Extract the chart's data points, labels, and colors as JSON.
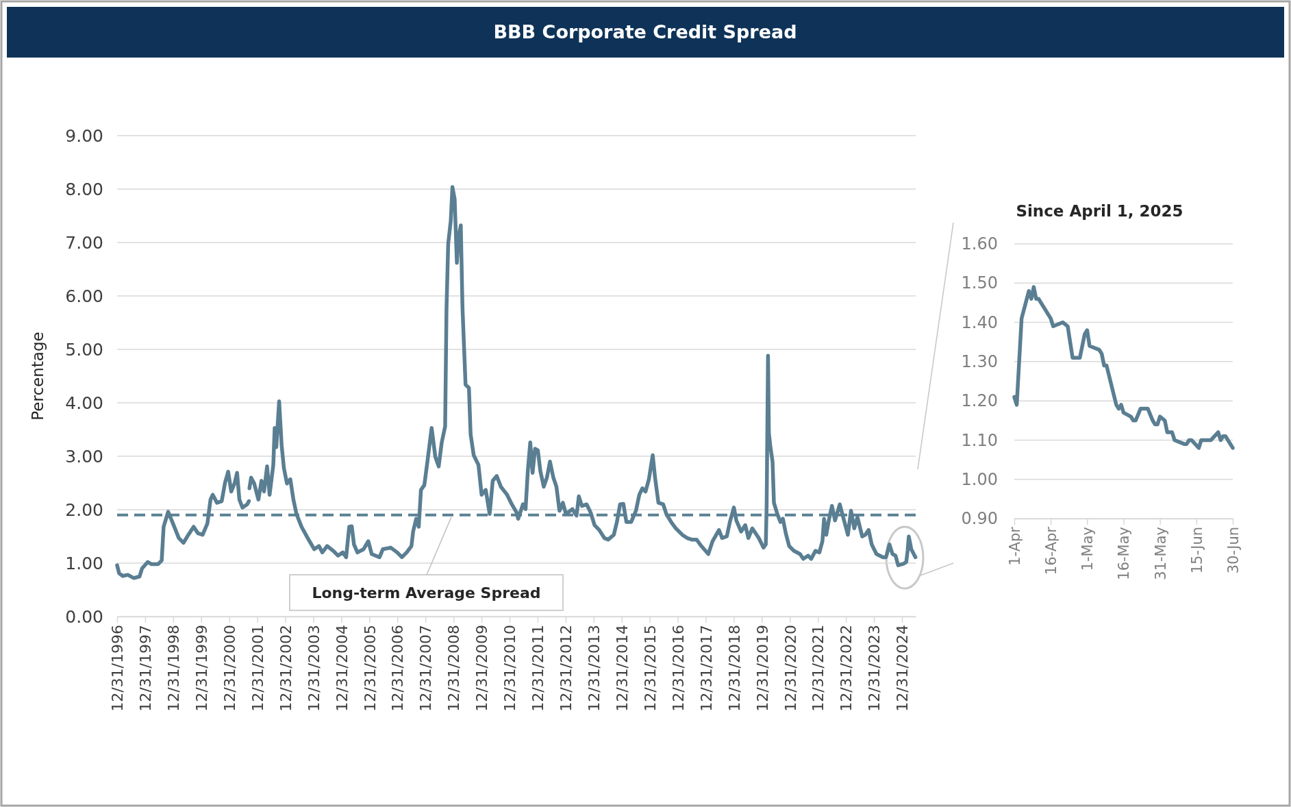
{
  "chart_data": [
    {
      "type": "line",
      "title": "BBB Corporate Credit Spread",
      "ylabel": "Percentage",
      "xlim": [
        "1996-12-31",
        "2025-06-27"
      ],
      "xticks": [
        {
          "value": "1996-12-31",
          "label": "12/31/1996"
        },
        {
          "value": "1997-12-31",
          "label": "12/31/1997"
        },
        {
          "value": "1998-12-31",
          "label": "12/31/1998"
        },
        {
          "value": "1999-12-31",
          "label": "12/31/1999"
        },
        {
          "value": "2000-12-31",
          "label": "12/31/2000"
        },
        {
          "value": "2001-12-31",
          "label": "12/31/2001"
        },
        {
          "value": "2002-12-31",
          "label": "12/31/2002"
        },
        {
          "value": "2003-12-31",
          "label": "12/31/2003"
        },
        {
          "value": "2004-12-31",
          "label": "12/31/2004"
        },
        {
          "value": "2005-12-31",
          "label": "12/31/2005"
        },
        {
          "value": "2006-12-31",
          "label": "12/31/2006"
        },
        {
          "value": "2007-12-31",
          "label": "12/31/2007"
        },
        {
          "value": "2008-12-31",
          "label": "12/31/2008"
        },
        {
          "value": "2009-12-31",
          "label": "12/31/2009"
        },
        {
          "value": "2010-12-31",
          "label": "12/31/2010"
        },
        {
          "value": "2011-12-31",
          "label": "12/31/2011"
        },
        {
          "value": "2012-12-31",
          "label": "12/31/2012"
        },
        {
          "value": "2013-12-31",
          "label": "12/31/2013"
        },
        {
          "value": "2014-12-31",
          "label": "12/31/2014"
        },
        {
          "value": "2015-12-31",
          "label": "12/31/2015"
        },
        {
          "value": "2016-12-31",
          "label": "12/31/2016"
        },
        {
          "value": "2017-12-31",
          "label": "12/31/2017"
        },
        {
          "value": "2018-12-31",
          "label": "12/31/2018"
        },
        {
          "value": "2019-12-31",
          "label": "12/31/2019"
        },
        {
          "value": "2020-12-31",
          "label": "12/31/2020"
        },
        {
          "value": "2021-12-31",
          "label": "12/31/2021"
        },
        {
          "value": "2022-12-31",
          "label": "12/31/2022"
        },
        {
          "value": "2023-12-31",
          "label": "12/31/2023"
        },
        {
          "value": "2024-12-31",
          "label": "12/31/2024"
        }
      ],
      "ylim": [
        0,
        9
      ],
      "yticks": [
        {
          "value": 0,
          "label": "0.00"
        },
        {
          "value": 1,
          "label": "1.00"
        },
        {
          "value": 2,
          "label": "2.00"
        },
        {
          "value": 3,
          "label": "3.00"
        },
        {
          "value": 4,
          "label": "4.00"
        },
        {
          "value": 5,
          "label": "5.00"
        },
        {
          "value": 6,
          "label": "6.00"
        },
        {
          "value": 7,
          "label": "7.00"
        },
        {
          "value": 8,
          "label": "8.00"
        },
        {
          "value": 9,
          "label": "9.00"
        }
      ],
      "grid": "y",
      "ref_lines": [
        {
          "axis": "y",
          "value": 1.9,
          "label": "Long-term Average Spread",
          "color": "#5b8194",
          "line_style": "dashed"
        }
      ],
      "series": [
        {
          "color": "#5a7e92",
          "x": [
            "1996-12-31",
            "1997-01-26",
            "1997-03-14",
            "1997-05-19",
            "1997-08-07",
            "1997-10-19",
            "1997-11-21",
            "1998-02-02",
            "1998-03-25",
            "1998-06-17",
            "1998-08-04",
            "1998-08-29",
            "1998-10-27",
            "1998-12-21",
            "1999-03-14",
            "1999-05-15",
            "1999-07-17",
            "1999-09-24",
            "1999-11-18",
            "2000-01-19",
            "2000-03-21",
            "2000-05-01",
            "2000-05-30",
            "2000-07-24",
            "2000-09-24",
            "2000-11-07",
            "2000-12-17",
            "2001-01-26",
            "2001-03-10",
            "2001-04-12",
            "2001-05-12",
            "2001-06-21",
            "2001-08-22",
            "2001-09-13",
            "2001-09-16",
            "2001-09-20",
            "2001-10-12",
            "2001-11-21",
            "2002-01-15",
            "2002-02-24",
            "2002-03-29",
            "2002-05-08",
            "2002-06-10",
            "2002-07-28",
            "2002-08-15",
            "2002-09-05",
            "2002-10-12",
            "2002-11-14",
            "2002-12-13",
            "2003-01-22",
            "2003-03-07",
            "2003-04-16",
            "2003-05-26",
            "2003-07-31",
            "2003-10-19",
            "2004-01-12",
            "2004-03-14",
            "2004-04-27",
            "2004-06-28",
            "2004-09-16",
            "2004-11-18",
            "2005-01-19",
            "2005-03-03",
            "2005-04-12",
            "2005-05-15",
            "2005-06-13",
            "2005-07-28",
            "2005-10-16",
            "2005-12-17",
            "2006-01-30",
            "2006-05-12",
            "2006-06-24",
            "2006-10-05",
            "2006-12-28",
            "2007-02-28",
            "2007-05-01",
            "2007-07-02",
            "2007-07-24",
            "2007-09-02",
            "2007-10-05",
            "2007-11-03",
            "2007-12-17",
            "2008-01-26",
            "2008-03-21",
            "2008-05-08",
            "2008-06-21",
            "2008-07-31",
            "2008-09-13",
            "2008-10-01",
            "2008-10-23",
            "2008-11-25",
            "2008-12-17",
            "2009-01-15",
            "2009-02-13",
            "2009-03-07",
            "2009-04-05",
            "2009-04-27",
            "2009-06-06",
            "2009-07-20",
            "2009-08-11",
            "2009-09-20",
            "2009-11-21",
            "2010-01-01",
            "2010-02-24",
            "2010-04-16",
            "2010-05-26",
            "2010-07-17",
            "2010-09-09",
            "2010-11-29",
            "2011-01-30",
            "2011-04-01",
            "2011-04-23",
            "2011-06-24",
            "2011-07-28",
            "2011-08-26",
            "2011-09-27",
            "2011-10-27",
            "2011-11-29",
            "2012-01-04",
            "2012-02-06",
            "2012-03-21",
            "2012-05-01",
            "2012-06-10",
            "2012-07-24",
            "2012-09-02",
            "2012-10-12",
            "2012-11-25",
            "2013-01-04",
            "2013-03-29",
            "2013-05-22",
            "2013-06-21",
            "2013-07-31",
            "2013-10-01",
            "2013-11-21",
            "2014-01-12",
            "2014-03-14",
            "2014-05-19",
            "2014-07-09",
            "2014-09-20",
            "2014-10-30",
            "2014-12-10",
            "2015-01-22",
            "2015-03-03",
            "2015-05-04",
            "2015-07-05",
            "2015-08-18",
            "2015-09-27",
            "2015-11-07",
            "2015-12-21",
            "2016-02-09",
            "2016-03-10",
            "2016-04-23",
            "2016-06-24",
            "2016-08-04",
            "2016-10-05",
            "2016-12-06",
            "2017-02-28",
            "2017-05-01",
            "2017-07-02",
            "2017-09-02",
            "2017-11-03",
            "2018-02-02",
            "2018-03-29",
            "2018-06-21",
            "2018-07-31",
            "2018-10-01",
            "2018-11-10",
            "2019-01-01",
            "2019-02-02",
            "2019-04-05",
            "2019-05-30",
            "2019-07-09",
            "2019-08-29",
            "2019-11-21",
            "2020-01-22",
            "2020-02-21",
            "2020-03-03",
            "2020-03-21",
            "2020-04-01",
            "2020-04-19",
            "2020-05-19",
            "2020-06-06",
            "2020-07-20",
            "2020-08-29",
            "2020-10-01",
            "2020-11-07",
            "2020-12-21",
            "2021-02-21",
            "2021-05-12",
            "2021-06-24",
            "2021-08-26",
            "2021-10-05",
            "2021-11-29",
            "2022-01-19",
            "2022-02-28",
            "2022-03-21",
            "2022-04-19",
            "2022-05-22",
            "2022-07-02",
            "2022-08-11",
            "2022-10-12",
            "2022-11-25",
            "2023-01-26",
            "2023-03-07",
            "2023-04-19",
            "2023-05-30",
            "2023-07-31",
            "2023-09-09",
            "2023-10-23",
            "2023-12-02",
            "2024-02-02",
            "2024-04-27",
            "2024-06-06",
            "2024-07-20",
            "2024-08-29",
            "2024-10-08",
            "2024-11-10",
            "2025-01-22",
            "2025-02-24",
            "2025-03-14",
            "2025-03-29",
            "2025-05-01",
            "2025-06-24"
          ],
          "values": [
            0.96,
            0.81,
            0.76,
            0.78,
            0.72,
            0.75,
            0.9,
            1.02,
            0.98,
            0.98,
            1.05,
            1.68,
            1.96,
            1.77,
            1.47,
            1.38,
            1.53,
            1.68,
            1.56,
            1.53,
            1.74,
            2.19,
            2.28,
            2.13,
            2.16,
            2.51,
            2.71,
            2.34,
            2.49,
            2.69,
            2.19,
            2.04,
            2.1,
            2.16,
            null,
            2.4,
            2.6,
            2.49,
            2.19,
            2.54,
            2.34,
            2.81,
            2.28,
            2.84,
            3.53,
            3.17,
            4.03,
            3.2,
            2.78,
            2.49,
            2.57,
            2.19,
            1.92,
            1.68,
            1.47,
            1.26,
            1.32,
            1.2,
            1.32,
            1.23,
            1.14,
            1.2,
            1.11,
            1.68,
            1.69,
            1.35,
            1.2,
            1.26,
            1.41,
            1.17,
            1.11,
            1.26,
            1.29,
            1.2,
            1.11,
            1.2,
            1.32,
            1.59,
            1.83,
            1.68,
            2.37,
            2.46,
            2.9,
            3.53,
            2.99,
            2.81,
            3.26,
            3.56,
            5.78,
            6.98,
            7.4,
            8.04,
            7.81,
            6.62,
            7.1,
            7.32,
            5.78,
            4.34,
            4.28,
            3.41,
            3.02,
            2.84,
            2.28,
            2.37,
            1.92,
            2.54,
            2.63,
            2.43,
            2.28,
            2.1,
            1.95,
            1.83,
            2.1,
            2.01,
            2.72,
            3.26,
            2.69,
            3.14,
            3.11,
            2.72,
            2.43,
            2.6,
            2.9,
            2.6,
            2.43,
            1.98,
            2.13,
            1.92,
            2.01,
            1.89,
            2.25,
            2.07,
            2.1,
            1.95,
            1.71,
            1.62,
            1.47,
            1.44,
            1.53,
            1.77,
            2.1,
            2.11,
            1.77,
            1.77,
            1.98,
            2.28,
            2.4,
            2.34,
            2.57,
            3.02,
            2.6,
            2.13,
            2.1,
            1.92,
            1.77,
            1.65,
            1.53,
            1.47,
            1.44,
            1.44,
            1.32,
            1.17,
            1.41,
            1.62,
            1.47,
            1.5,
            1.77,
            2.04,
            1.8,
            1.59,
            1.71,
            1.47,
            1.65,
            1.47,
            1.29,
            1.35,
            2.07,
            4.88,
            3.44,
            3.2,
            2.9,
            2.13,
            1.92,
            1.77,
            1.83,
            1.56,
            1.32,
            1.23,
            1.17,
            1.08,
            1.14,
            1.08,
            1.23,
            1.2,
            1.41,
            1.83,
            1.53,
            1.8,
            2.07,
            1.8,
            2.1,
            1.86,
            1.53,
            1.98,
            1.65,
            1.86,
            1.5,
            1.53,
            1.62,
            1.35,
            1.17,
            1.11,
            1.11,
            1.35,
            1.17,
            1.14,
            0.96,
            0.99,
            1.02,
            1.23,
            1.5,
            1.26,
            1.11
          ]
        }
      ]
    },
    {
      "type": "line",
      "title": "Since April 1, 2025",
      "xlim": [
        "--04-01",
        "--06-30"
      ],
      "xticks": [
        {
          "value": "--04-01",
          "label": "1-Apr"
        },
        {
          "value": "--04-16",
          "label": "16-Apr"
        },
        {
          "value": "--05-01",
          "label": "1-May"
        },
        {
          "value": "--05-16",
          "label": "16-May"
        },
        {
          "value": "--05-31",
          "label": "31-May"
        },
        {
          "value": "--06-15",
          "label": "15-Jun"
        },
        {
          "value": "--06-30",
          "label": "30-Jun"
        }
      ],
      "ylim": [
        0.9,
        1.6
      ],
      "yticks": [
        {
          "value": 0.9,
          "label": "0.90"
        },
        {
          "value": 1.0,
          "label": "1.00"
        },
        {
          "value": 1.1,
          "label": "1.10"
        },
        {
          "value": 1.2,
          "label": "1.20"
        },
        {
          "value": 1.3,
          "label": "1.30"
        },
        {
          "value": 1.4,
          "label": "1.40"
        },
        {
          "value": 1.5,
          "label": "1.50"
        },
        {
          "value": 1.6,
          "label": "1.60"
        }
      ],
      "grid": "y",
      "series": [
        {
          "color": "#5a7e92",
          "x": [
            "--04-01",
            "--04-02",
            "--04-04",
            "--04-07",
            "--04-08",
            "--04-09",
            "--04-10",
            "--04-11",
            "--04-16",
            "--04-17",
            "--04-21",
            "--04-23",
            "--04-24",
            "--04-25",
            "--04-28",
            "--04-30",
            "--05-01",
            "--05-02",
            "--05-06",
            "--05-07",
            "--05-08",
            "--05-09",
            "--05-13",
            "--05-14",
            "--05-15",
            "--05-16",
            "--05-19",
            "--05-20",
            "--05-21",
            "--05-23",
            "--05-26",
            "--05-28",
            "--05-29",
            "--05-30",
            "--05-31",
            "--06-02",
            "--06-03",
            "--06-05",
            "--06-06",
            "--06-10",
            "--06-11",
            "--06-12",
            "--06-13",
            "--06-16",
            "--06-17",
            "--06-21",
            "--06-24",
            "--06-25",
            "--06-26",
            "--06-27",
            "--06-30"
          ],
          "values": [
            1.21,
            1.19,
            1.41,
            1.48,
            1.46,
            1.49,
            1.46,
            1.46,
            1.41,
            1.39,
            1.4,
            1.39,
            1.35,
            1.31,
            1.31,
            1.37,
            1.38,
            1.34,
            1.33,
            1.32,
            1.29,
            1.29,
            1.19,
            1.18,
            1.19,
            1.17,
            1.16,
            1.15,
            1.15,
            1.18,
            1.18,
            1.15,
            1.14,
            1.14,
            1.16,
            1.15,
            1.12,
            1.12,
            1.1,
            1.09,
            1.09,
            1.1,
            1.1,
            1.08,
            1.1,
            1.1,
            1.12,
            1.1,
            1.11,
            1.11,
            1.08
          ]
        }
      ]
    }
  ]
}
